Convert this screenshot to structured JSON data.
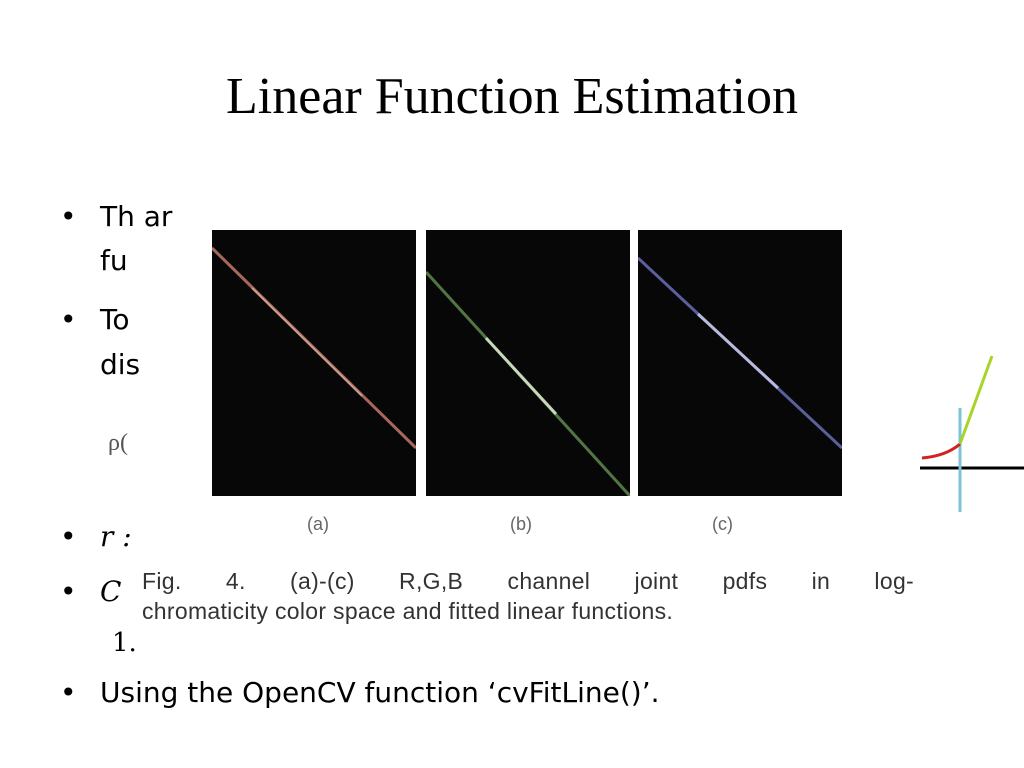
{
  "slide": {
    "title": "Linear Function Estimation",
    "bullet_symbol": "•",
    "bullets": {
      "b1_line1": "Th                                                     ar",
      "b1_line2": "fu",
      "b2_line1": "To",
      "b2_line2": "dis",
      "formula_fragment": "ρ(",
      "b3": "r :",
      "b4": "C",
      "b4_line2": "1.",
      "b5": "Using the OpenCV function ‘cvFitLine()’."
    }
  },
  "figure": {
    "panels": [
      {
        "label": "(a)",
        "line_color": "#c47a6a"
      },
      {
        "label": "(b)",
        "line_color": "#5f8a50"
      },
      {
        "label": "(c)",
        "line_color": "#6a6fb8"
      }
    ],
    "caption_line1": "Fig.  4.    (a)-(c)  R,G,B  channel  joint  pdfs  in  log-",
    "caption_line2": "chromaticity color space and fitted linear functions."
  },
  "side_figure": {
    "colors": {
      "curve": "#d42020",
      "fit_line": "#a8d42a",
      "vertical": "#7cc4d8",
      "axis": "#000000"
    }
  }
}
